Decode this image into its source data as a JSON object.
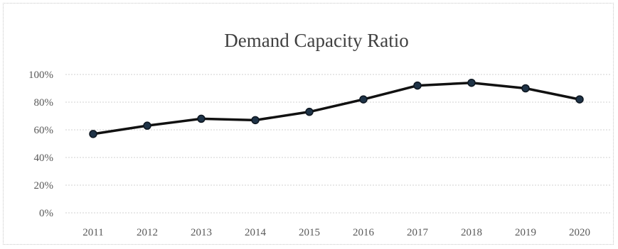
{
  "chart_data": {
    "type": "line",
    "title": "Demand Capacity Ratio",
    "xlabel": "",
    "ylabel": "",
    "categories": [
      "2011",
      "2012",
      "2013",
      "2014",
      "2015",
      "2016",
      "2017",
      "2018",
      "2019",
      "2020"
    ],
    "series": [
      {
        "values": [
          57,
          63,
          68,
          67,
          73,
          82,
          92,
          94,
          90,
          82
        ]
      }
    ],
    "y_ticks": [
      "0%",
      "20%",
      "40%",
      "60%",
      "80%",
      "100%"
    ],
    "ylim": [
      0,
      100
    ],
    "grid": true,
    "legend": "none",
    "colors": {
      "line": "#111111",
      "marker": "#1f3347"
    }
  }
}
